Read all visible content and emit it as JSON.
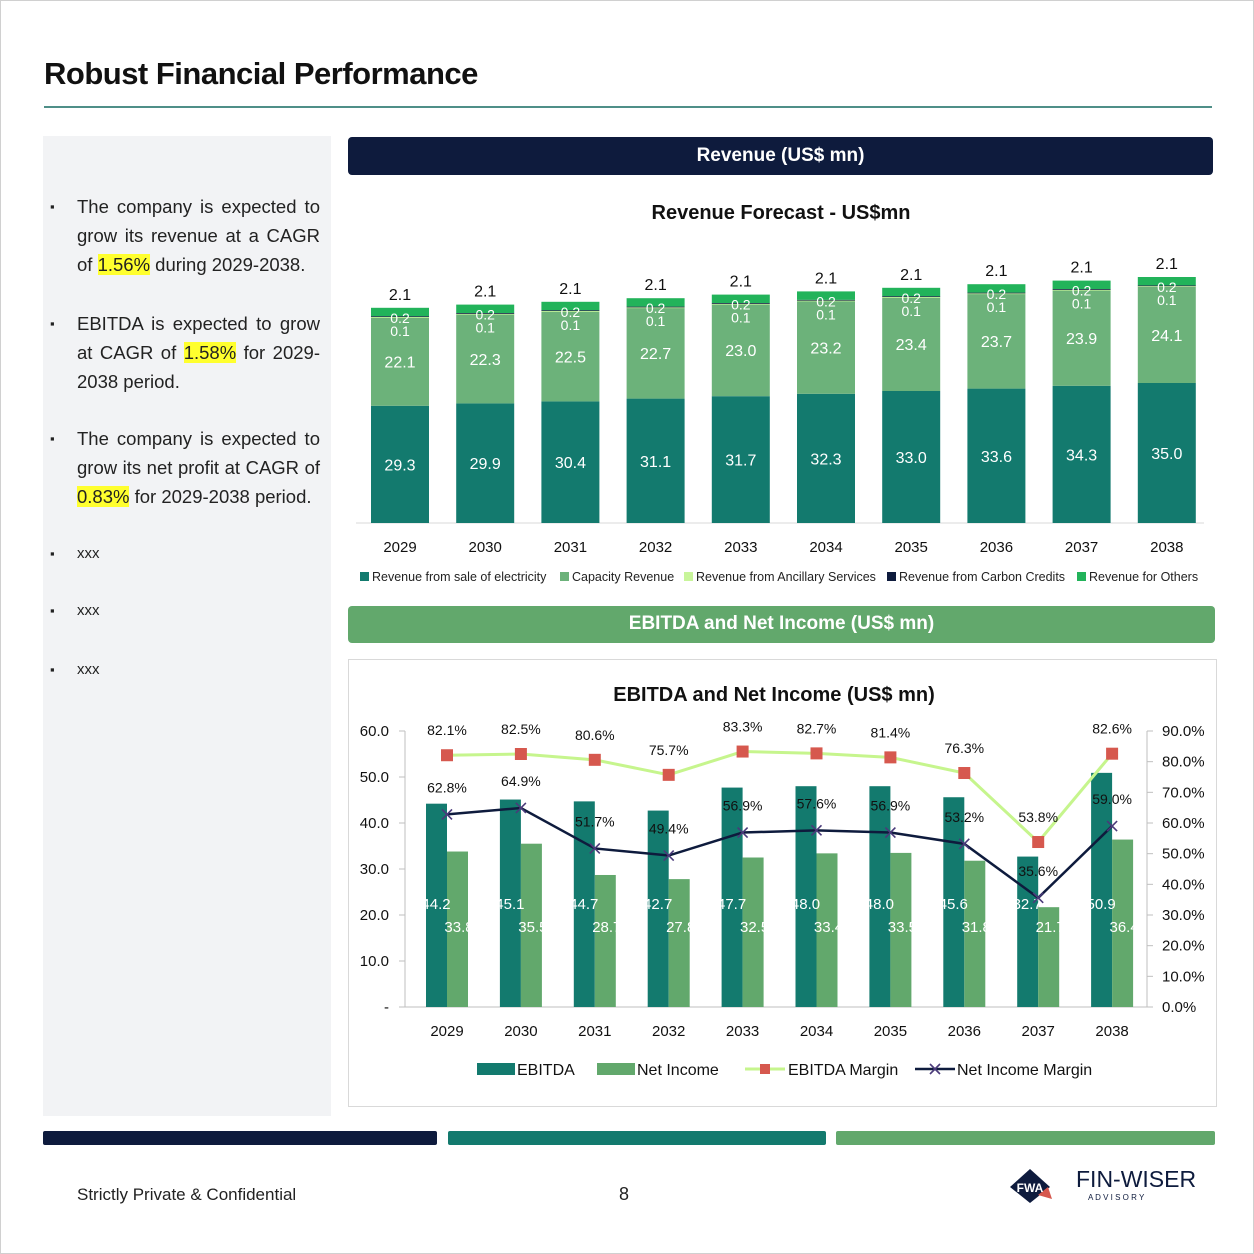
{
  "page": {
    "title": "Robust Financial Performance",
    "footer_text": "Strictly Private & Confidential",
    "page_number": "8"
  },
  "bullets": [
    {
      "before": "The company is expected to grow its revenue at a CAGR of ",
      "highlight": "1.56%",
      "after": " during 2029-2038."
    },
    {
      "before": "EBITDA is expected to grow at CAGR of ",
      "highlight": "1.58%",
      "after": " for 2029-2038 period."
    },
    {
      "before": "The company is expected to grow its net profit at CAGR of ",
      "highlight": "0.83%",
      "after": " for 2029-2038 period."
    },
    {
      "text": "xxx"
    },
    {
      "text": "xxx"
    },
    {
      "text": "xxx"
    }
  ],
  "sections": {
    "revenue_banner": "Revenue (US$ mn)",
    "ebitda_banner": "EBITDA and Net Income (US$ mn)"
  },
  "logo": {
    "mark": "FWA",
    "name": "FIN-WISER",
    "tagline": "A D V I S O R Y"
  },
  "colors": {
    "navy": "#0e1b3d",
    "teal": "#137a6e",
    "green": "#62a86c",
    "light_green": "#c8f59a",
    "bright_green": "#22b35a",
    "margin_line": "#c6f58d",
    "margin_marker": "#d6584e",
    "highlight": "#ffff2e"
  },
  "chart_data": [
    {
      "type": "bar",
      "stacked": true,
      "title": "Revenue Forecast - US$mn",
      "categories": [
        "2029",
        "2030",
        "2031",
        "2032",
        "2033",
        "2034",
        "2035",
        "2036",
        "2037",
        "2038"
      ],
      "series": [
        {
          "name": "Revenue from sale of electricity",
          "color": "#137a6e",
          "values": [
            29.3,
            29.9,
            30.4,
            31.1,
            31.7,
            32.3,
            33.0,
            33.6,
            34.3,
            35.0
          ]
        },
        {
          "name": "Capacity Revenue",
          "color": "#6cb27a",
          "values": [
            22.1,
            22.3,
            22.5,
            22.7,
            23.0,
            23.2,
            23.4,
            23.7,
            23.9,
            24.1
          ]
        },
        {
          "name": "Revenue from Ancillary Services",
          "color": "#c8f59a",
          "values": [
            0.1,
            0.1,
            0.1,
            0.1,
            0.1,
            0.1,
            0.1,
            0.1,
            0.1,
            0.1
          ]
        },
        {
          "name": "Revenue from Carbon Credits",
          "color": "#0e1b3d",
          "values": [
            0.2,
            0.2,
            0.2,
            0.2,
            0.2,
            0.2,
            0.2,
            0.2,
            0.2,
            0.2
          ]
        },
        {
          "name": "Revenue for Others",
          "color": "#22b35a",
          "values": [
            2.1,
            2.1,
            2.1,
            2.1,
            2.1,
            2.1,
            2.1,
            2.1,
            2.1,
            2.1
          ]
        }
      ],
      "legend_position": "bottom",
      "grid": false
    },
    {
      "type": "bar",
      "combo": "bar-line",
      "title": "EBITDA and Net Income (US$ mn)",
      "categories": [
        "2029",
        "2030",
        "2031",
        "2032",
        "2033",
        "2034",
        "2035",
        "2036",
        "2037",
        "2038"
      ],
      "series": [
        {
          "name": "EBITDA",
          "kind": "bar",
          "axis": "left",
          "color": "#137a6e",
          "values": [
            44.2,
            45.1,
            44.7,
            42.7,
            47.7,
            48.0,
            48.0,
            45.6,
            32.7,
            50.9
          ]
        },
        {
          "name": "Net Income",
          "kind": "bar",
          "axis": "left",
          "color": "#62a86c",
          "values": [
            33.8,
            35.5,
            28.7,
            27.8,
            32.5,
            33.4,
            33.5,
            31.8,
            21.7,
            36.4
          ]
        },
        {
          "name": "EBITDA Margin",
          "kind": "line",
          "axis": "right",
          "color": "#c6f58d",
          "marker_color": "#d6584e",
          "values": [
            82.1,
            82.5,
            80.6,
            75.7,
            83.3,
            82.7,
            81.4,
            76.3,
            53.8,
            82.6
          ]
        },
        {
          "name": "Net Income Margin",
          "kind": "line",
          "axis": "right",
          "color": "#0e1b3d",
          "values": [
            62.8,
            64.9,
            51.7,
            49.4,
            56.9,
            57.6,
            56.9,
            53.2,
            35.6,
            59.0
          ]
        }
      ],
      "y_left": {
        "min": 0,
        "max": 60,
        "ticks": [
          "-",
          "10.0",
          "20.0",
          "30.0",
          "40.0",
          "50.0",
          "60.0"
        ]
      },
      "y_right": {
        "min": 0,
        "max": 90,
        "ticks": [
          "0.0%",
          "10.0%",
          "20.0%",
          "30.0%",
          "40.0%",
          "50.0%",
          "60.0%",
          "70.0%",
          "80.0%",
          "90.0%"
        ]
      },
      "legend_position": "bottom",
      "grid": false
    }
  ]
}
